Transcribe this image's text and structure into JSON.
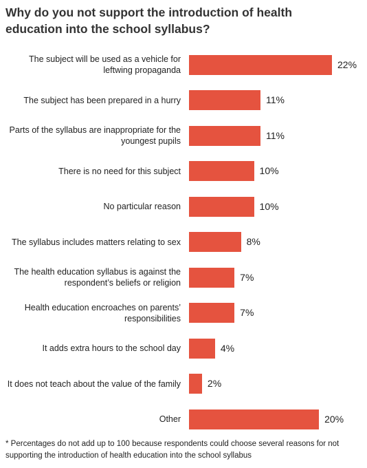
{
  "chart_data": {
    "type": "bar",
    "orientation": "horizontal",
    "title": "Why do you not support the introduction of health education into the school syllabus?",
    "categories": [
      "The subject will be used as a vehicle for leftwing propaganda",
      "The subject has been prepared in a hurry",
      "Parts of the syllabus are inappropriate for the youngest pupils",
      "There is no need for this subject",
      "No particular reason",
      "The syllabus includes matters relating to sex",
      "The health education syllabus is against the respondent’s beliefs or religion",
      "Health education encroaches on parents’ responsibilities",
      "It adds extra hours to the school day",
      "It does not teach about the value of the family",
      "Other"
    ],
    "values": [
      22,
      11,
      11,
      10,
      10,
      8,
      7,
      7,
      4,
      2,
      20
    ],
    "value_labels": [
      "22%",
      "11%",
      "11%",
      "10%",
      "10%",
      "8%",
      "7%",
      "7%",
      "4%",
      "2%",
      "20%"
    ],
    "color": "#e5533f",
    "footnote": "* Percentages do not add up to 100 because respondents could choose several reasons for not supporting the introduction of health education into the school syllabus"
  }
}
